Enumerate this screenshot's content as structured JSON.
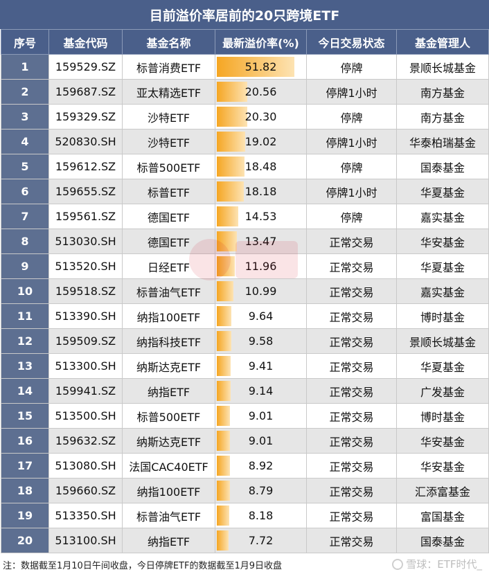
{
  "title": "目前溢价率居前的20只跨境ETF",
  "columns": [
    "序号",
    "基金代码",
    "基金名称",
    "最新溢价率(%)",
    "今日交易状态",
    "基金管理人"
  ],
  "rows": [
    {
      "rank": "1",
      "code": "159529.SZ",
      "name": "标普消费ETF",
      "premium": "51.82",
      "premium_value": 51.82,
      "status": "停牌",
      "manager": "景顺长城基金"
    },
    {
      "rank": "2",
      "code": "159687.SZ",
      "name": "亚太精选ETF",
      "premium": "20.56",
      "premium_value": 20.56,
      "status": "停牌1小时",
      "manager": "南方基金"
    },
    {
      "rank": "3",
      "code": "159329.SZ",
      "name": "沙特ETF",
      "premium": "20.30",
      "premium_value": 20.3,
      "status": "停牌",
      "manager": "南方基金"
    },
    {
      "rank": "4",
      "code": "520830.SH",
      "name": "沙特ETF",
      "premium": "19.02",
      "premium_value": 19.02,
      "status": "停牌1小时",
      "manager": "华泰柏瑞基金"
    },
    {
      "rank": "5",
      "code": "159612.SZ",
      "name": "标普500ETF",
      "premium": "18.48",
      "premium_value": 18.48,
      "status": "停牌",
      "manager": "国泰基金"
    },
    {
      "rank": "6",
      "code": "159655.SZ",
      "name": "标普ETF",
      "premium": "18.18",
      "premium_value": 18.18,
      "status": "停牌1小时",
      "manager": "华夏基金"
    },
    {
      "rank": "7",
      "code": "159561.SZ",
      "name": "德国ETF",
      "premium": "14.53",
      "premium_value": 14.53,
      "status": "停牌",
      "manager": "嘉实基金"
    },
    {
      "rank": "8",
      "code": "513030.SH",
      "name": "德国ETF",
      "premium": "13.47",
      "premium_value": 13.47,
      "status": "正常交易",
      "manager": "华安基金"
    },
    {
      "rank": "9",
      "code": "513520.SH",
      "name": "日经ETF",
      "premium": "11.96",
      "premium_value": 11.96,
      "status": "正常交易",
      "manager": "华夏基金"
    },
    {
      "rank": "10",
      "code": "159518.SZ",
      "name": "标普油气ETF",
      "premium": "10.99",
      "premium_value": 10.99,
      "status": "正常交易",
      "manager": "嘉实基金"
    },
    {
      "rank": "11",
      "code": "513390.SH",
      "name": "纳指100ETF",
      "premium": "9.64",
      "premium_value": 9.64,
      "status": "正常交易",
      "manager": "博时基金"
    },
    {
      "rank": "12",
      "code": "159509.SZ",
      "name": "纳指科技ETF",
      "premium": "9.58",
      "premium_value": 9.58,
      "status": "正常交易",
      "manager": "景顺长城基金"
    },
    {
      "rank": "13",
      "code": "513300.SH",
      "name": "纳斯达克ETF",
      "premium": "9.41",
      "premium_value": 9.41,
      "status": "正常交易",
      "manager": "华夏基金"
    },
    {
      "rank": "14",
      "code": "159941.SZ",
      "name": "纳指ETF",
      "premium": "9.14",
      "premium_value": 9.14,
      "status": "正常交易",
      "manager": "广发基金"
    },
    {
      "rank": "15",
      "code": "513500.SH",
      "name": "标普500ETF",
      "premium": "9.01",
      "premium_value": 9.01,
      "status": "正常交易",
      "manager": "博时基金"
    },
    {
      "rank": "16",
      "code": "159632.SZ",
      "name": "纳斯达克ETF",
      "premium": "9.01",
      "premium_value": 9.01,
      "status": "正常交易",
      "manager": "华安基金"
    },
    {
      "rank": "17",
      "code": "513080.SH",
      "name": "法国CAC40ETF",
      "premium": "8.92",
      "premium_value": 8.92,
      "status": "正常交易",
      "manager": "华安基金"
    },
    {
      "rank": "18",
      "code": "159660.SZ",
      "name": "纳指100ETF",
      "premium": "8.79",
      "premium_value": 8.79,
      "status": "正常交易",
      "manager": "汇添富基金"
    },
    {
      "rank": "19",
      "code": "513350.SH",
      "name": "标普油气ETF",
      "premium": "8.18",
      "premium_value": 8.18,
      "status": "正常交易",
      "manager": "富国基金"
    },
    {
      "rank": "20",
      "code": "513100.SH",
      "name": "纳指ETF",
      "premium": "7.72",
      "premium_value": 7.72,
      "status": "正常交易",
      "manager": "国泰基金"
    }
  ],
  "premium_bar_max": 51.82,
  "footnote": "注：数据截至1月10日午间收盘，今日停牌ETF的数据截至1月9日收盘",
  "brand": "雪球：ETF时代_",
  "colors": {
    "header_bg": "#4a5f8a",
    "rank_bg": "#5d6f91",
    "stripe": "#e6e6e6",
    "bar_start": "#f5a623",
    "bar_end": "#fde3b3"
  }
}
